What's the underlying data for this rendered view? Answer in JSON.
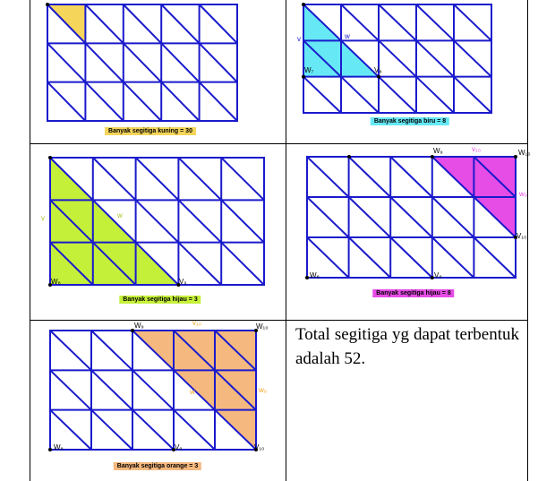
{
  "colors": {
    "grid": "#1a1acc",
    "kuning": "#f5d55a",
    "biru": "#66e8f5",
    "hijau": "#c5f03a",
    "magenta": "#e64ce6",
    "orange": "#f5b97f",
    "label_orange": "#f5a623",
    "label_magenta": "#e64ce6"
  },
  "panels": [
    {
      "id": "kuning",
      "caption": "Banyak segitiga kuning = 30",
      "caption_bg": "#f5d55a",
      "labels": []
    },
    {
      "id": "biru",
      "caption": "Banyak segitiga biru = 8",
      "caption_bg": "#66e8f5",
      "labels": [
        {
          "text": "v",
          "color": "#1a1acc"
        },
        {
          "text": "w",
          "color": "#1a1acc"
        },
        {
          "text": "W₇",
          "color": "#000000"
        },
        {
          "text": "V₈",
          "color": "#000000"
        }
      ]
    },
    {
      "id": "hijau",
      "caption": "Banyak segitiga hijau = 3",
      "caption_bg": "#c5f03a",
      "labels": [
        {
          "text": "v",
          "color": "#c5f03a"
        },
        {
          "text": "w",
          "color": "#c5f03a"
        },
        {
          "text": "W₈",
          "color": "#000000"
        },
        {
          "text": "V₉",
          "color": "#000000"
        }
      ]
    },
    {
      "id": "magenta",
      "caption": "Banyak segitiga hijau = 8",
      "caption_bg": "#e64ce6",
      "labels": [
        {
          "text": "W₉",
          "color": "#000000"
        },
        {
          "text": "v₁₀",
          "color": "#e64ce6"
        },
        {
          "text": "W₁₀",
          "color": "#000000"
        },
        {
          "text": "w₉",
          "color": "#e64ce6"
        },
        {
          "text": "V₁₀",
          "color": "#000000"
        },
        {
          "text": "W₈",
          "color": "#000000"
        },
        {
          "text": "V₉",
          "color": "#000000"
        }
      ]
    },
    {
      "id": "orange",
      "caption": "Banyak segitiga orange = 3",
      "caption_bg": "#f5b97f",
      "labels": [
        {
          "text": "W₉",
          "color": "#000000"
        },
        {
          "text": "v₁₀",
          "color": "#f5a623"
        },
        {
          "text": "W₁₀",
          "color": "#000000"
        },
        {
          "text": "w₉",
          "color": "#f5a623"
        },
        {
          "text": "w",
          "color": "#f5a623"
        },
        {
          "text": "W₈",
          "color": "#000000"
        },
        {
          "text": "V₉",
          "color": "#000000"
        },
        {
          "text": "V₁₀",
          "color": "#000000"
        }
      ]
    }
  ],
  "total_text": "Total segitiga yg dapat terbentuk adalah 52."
}
